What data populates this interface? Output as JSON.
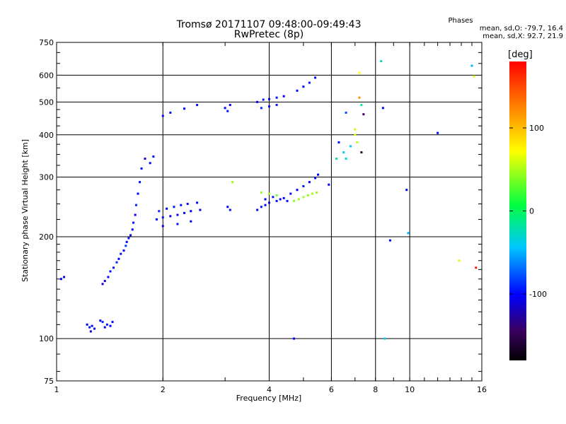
{
  "header": {
    "title": "Tromsø 20171107 09:48:00-09:49:43",
    "subtitle": "RwPretec (8p)"
  },
  "phases": {
    "title": "Phases",
    "o_line": "mean, sd,O: -79.7, 16.4",
    "x_line": "mean, sd,X:  92.7, 21.9"
  },
  "chart_data": {
    "type": "scatter",
    "xlabel": "Frequency [MHz]",
    "ylabel": "Stationary phase Virtual Height [km]",
    "xscale": "log",
    "yscale": "log",
    "xlim": [
      1,
      16
    ],
    "ylim": [
      75,
      750
    ],
    "x_ticks": [
      1,
      2,
      4,
      6,
      8,
      10,
      16
    ],
    "y_ticks": [
      75,
      100,
      200,
      300,
      400,
      500,
      600,
      750
    ],
    "grid": true,
    "colorbar": {
      "label": "[deg]",
      "range": [
        -180,
        180
      ],
      "ticks": [
        -100,
        0,
        100
      ]
    },
    "series": [
      {
        "points": [
          [
            1.03,
            150,
            -100
          ],
          [
            1.05,
            152,
            -105
          ],
          [
            1.22,
            110,
            -100
          ],
          [
            1.24,
            108,
            -95
          ],
          [
            1.25,
            105,
            -110
          ],
          [
            1.26,
            109,
            -98
          ],
          [
            1.28,
            107,
            -102
          ],
          [
            1.33,
            113,
            -100
          ],
          [
            1.35,
            112,
            -90
          ],
          [
            1.37,
            108,
            -105
          ],
          [
            1.39,
            110,
            -95
          ],
          [
            1.42,
            109,
            -100
          ],
          [
            1.44,
            112,
            -98
          ]
        ]
      },
      {
        "points": [
          [
            1.35,
            145,
            -110
          ],
          [
            1.37,
            148,
            -105
          ],
          [
            1.4,
            152,
            -100
          ],
          [
            1.42,
            158,
            -95
          ],
          [
            1.45,
            162,
            -100
          ],
          [
            1.48,
            168,
            -90
          ],
          [
            1.5,
            172,
            -100
          ],
          [
            1.52,
            178,
            -95
          ],
          [
            1.55,
            182,
            -100
          ],
          [
            1.57,
            188,
            -85
          ],
          [
            1.58,
            193,
            -100
          ],
          [
            1.6,
            198,
            -95
          ],
          [
            1.62,
            202,
            -105
          ],
          [
            1.64,
            210,
            -100
          ],
          [
            1.65,
            220,
            -95
          ],
          [
            1.67,
            232,
            -100
          ],
          [
            1.68,
            248,
            -90
          ],
          [
            1.7,
            268,
            -100
          ],
          [
            1.72,
            290,
            -95
          ],
          [
            1.74,
            318,
            -100
          ],
          [
            1.78,
            340,
            -105
          ],
          [
            1.84,
            330,
            -100
          ],
          [
            1.88,
            345,
            -95
          ]
        ]
      },
      {
        "points": [
          [
            1.92,
            225,
            -100
          ],
          [
            2.0,
            228,
            -95
          ],
          [
            2.1,
            230,
            -100
          ],
          [
            2.2,
            232,
            -100
          ],
          [
            2.3,
            235,
            -95
          ],
          [
            2.4,
            238,
            -100
          ],
          [
            2.55,
            240,
            -100
          ],
          [
            1.95,
            238,
            -90
          ],
          [
            2.05,
            242,
            -100
          ],
          [
            2.15,
            245,
            -95
          ],
          [
            2.25,
            248,
            -100
          ],
          [
            2.35,
            250,
            -98
          ],
          [
            2.5,
            252,
            -100
          ],
          [
            2.0,
            215,
            -100
          ],
          [
            2.2,
            218,
            -95
          ],
          [
            2.4,
            222,
            -100
          ]
        ]
      },
      {
        "points": [
          [
            2.0,
            455,
            -100
          ],
          [
            2.1,
            465,
            -95
          ],
          [
            2.3,
            478,
            -100
          ],
          [
            2.5,
            490,
            -98
          ],
          [
            3.0,
            480,
            -100
          ],
          [
            3.05,
            470,
            -95
          ],
          [
            3.1,
            490,
            -100
          ],
          [
            3.05,
            245,
            -100
          ],
          [
            3.1,
            240,
            -95
          ],
          [
            3.15,
            290,
            40
          ]
        ]
      },
      {
        "points": [
          [
            3.7,
            240,
            -100
          ],
          [
            3.8,
            245,
            -95
          ],
          [
            3.9,
            248,
            -100
          ],
          [
            4.0,
            252,
            -100
          ],
          [
            4.2,
            255,
            -95
          ],
          [
            4.4,
            260,
            -100
          ],
          [
            4.6,
            268,
            -98
          ],
          [
            4.8,
            275,
            -100
          ],
          [
            5.0,
            282,
            -95
          ],
          [
            5.2,
            290,
            -100
          ],
          [
            5.4,
            298,
            -98
          ],
          [
            5.5,
            305,
            -100
          ],
          [
            3.8,
            270,
            40
          ],
          [
            4.0,
            268,
            45
          ],
          [
            4.2,
            265,
            30
          ],
          [
            3.9,
            258,
            -100
          ],
          [
            4.1,
            262,
            -95
          ],
          [
            4.3,
            258,
            -100
          ],
          [
            4.5,
            255,
            -95
          ]
        ]
      },
      {
        "points": [
          [
            4.7,
            255,
            40
          ],
          [
            4.85,
            258,
            45
          ],
          [
            5.0,
            262,
            42
          ],
          [
            5.15,
            265,
            38
          ],
          [
            5.3,
            268,
            45
          ],
          [
            5.45,
            270,
            40
          ]
        ]
      },
      {
        "points": [
          [
            3.7,
            500,
            -100
          ],
          [
            3.85,
            508,
            -95
          ],
          [
            4.0,
            510,
            -100
          ],
          [
            4.2,
            515,
            -95
          ],
          [
            4.4,
            520,
            -100
          ],
          [
            4.8,
            540,
            -98
          ],
          [
            5.0,
            555,
            -100
          ],
          [
            5.2,
            570,
            -95
          ],
          [
            5.4,
            590,
            -100
          ],
          [
            3.8,
            480,
            -90
          ],
          [
            4.0,
            485,
            -100
          ],
          [
            4.2,
            490,
            -95
          ]
        ]
      },
      {
        "points": [
          [
            5.9,
            285,
            -100
          ],
          [
            6.2,
            340,
            -20
          ],
          [
            6.3,
            380,
            -100
          ],
          [
            6.5,
            355,
            -40
          ],
          [
            6.6,
            340,
            -30
          ],
          [
            6.8,
            370,
            -40
          ],
          [
            7.0,
            400,
            60
          ],
          [
            7.0,
            415,
            55
          ],
          [
            7.1,
            380,
            50
          ],
          [
            7.2,
            610,
            70
          ],
          [
            7.2,
            515,
            120
          ],
          [
            7.3,
            490,
            -20
          ],
          [
            7.4,
            460,
            -140
          ],
          [
            6.6,
            465,
            -80
          ],
          [
            7.3,
            355,
            -160
          ],
          [
            8.3,
            660,
            -30
          ],
          [
            8.4,
            480,
            -100
          ],
          [
            8.8,
            195,
            -100
          ],
          [
            9.8,
            275,
            -100
          ],
          [
            9.9,
            205,
            -50
          ],
          [
            12.0,
            405,
            -100
          ],
          [
            13.8,
            170,
            60
          ],
          [
            15.0,
            640,
            -50
          ],
          [
            15.2,
            595,
            60
          ],
          [
            15.4,
            162,
            170
          ],
          [
            8.5,
            100,
            -40
          ],
          [
            4.7,
            100,
            -100
          ]
        ]
      }
    ]
  }
}
